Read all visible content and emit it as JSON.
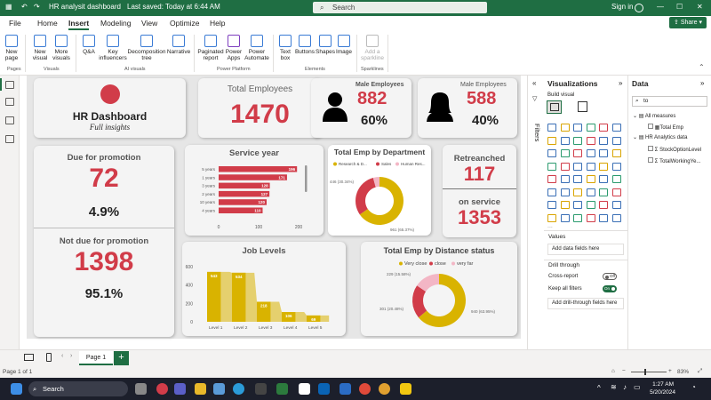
{
  "titlebar": {
    "doc_title": "HR analysit dashboard",
    "saved": "Last saved: Today at 6:44 AM",
    "search_placeholder": "Search",
    "signin": "Sign in"
  },
  "menu": {
    "items": [
      "File",
      "Home",
      "Insert",
      "Modeling",
      "View",
      "Optimize",
      "Help"
    ],
    "active": "Insert",
    "share": "Share"
  },
  "ribbon": {
    "buttons": [
      {
        "label": "New page",
        "group": "Pages"
      },
      {
        "label": "New visual",
        "group": "Visuals"
      },
      {
        "label": "More visuals",
        "group": "Visuals"
      },
      {
        "label": "Q&A",
        "group": "AI visuals"
      },
      {
        "label": "Key influencers",
        "group": "AI visuals"
      },
      {
        "label": "Decomposition tree",
        "group": "AI visuals"
      },
      {
        "label": "Narrative",
        "group": "AI visuals"
      },
      {
        "label": "Paginated report",
        "group": "Power Platform"
      },
      {
        "label": "Power Apps",
        "group": "Power Platform"
      },
      {
        "label": "Power Automate",
        "group": "Power Platform"
      },
      {
        "label": "Text box",
        "group": "Elements"
      },
      {
        "label": "Buttons",
        "group": "Elements"
      },
      {
        "label": "Shapes",
        "group": "Elements"
      },
      {
        "label": "Image",
        "group": "Elements"
      },
      {
        "label": "Add a sparkline",
        "group": "Sparklines"
      }
    ],
    "groups": [
      "Pages",
      "Visuals",
      "AI visuals",
      "Power Platform",
      "Elements",
      "Sparklines"
    ]
  },
  "dashboard": {
    "title": "HR Dashboard",
    "subtitle": "Full insights",
    "total_employees_label": "Total Employees",
    "total_employees": "1470",
    "male_label": "Male Employees",
    "male_count": "882",
    "male_pct": "60%",
    "female_label": "Male Employees",
    "female_count": "588",
    "female_pct": "40%",
    "due_label": "Due for promotion",
    "due_count": "72",
    "due_pct": "4.9%",
    "notdue_label": "Not due for promotion",
    "notdue_count": "1398",
    "notdue_pct": "95.1%",
    "retrenched_label": "Retreanched",
    "retrenched_count": "117",
    "onservice_label": "on service",
    "onservice_count": "1353"
  },
  "chart_data": [
    {
      "type": "bar",
      "title": "Service year",
      "orientation": "horizontal",
      "categories": [
        "5 years",
        "1 years",
        "3 years",
        "2 years",
        "10 years",
        "4 years"
      ],
      "values": [
        196,
        171,
        128,
        127,
        120,
        110
      ],
      "xlim": [
        0,
        200
      ],
      "xticks": [
        "0",
        "100",
        "200"
      ]
    },
    {
      "type": "pie",
      "title": "Total Emp by Department",
      "legend": [
        "Research & D...",
        "Sales",
        "Human Res..."
      ],
      "slices": [
        {
          "name": "Research & D...",
          "value": 961,
          "label": "961 (65.37%)",
          "color": "#d9b300"
        },
        {
          "name": "Sales",
          "value": 446,
          "label": "446 (30.34%)",
          "color": "#d13c49"
        },
        {
          "name": "Human Res...",
          "value": 63,
          "label": "",
          "color": "#f3b6c5"
        }
      ]
    },
    {
      "type": "bar",
      "title": "Job Levels",
      "categories": [
        "Level 1",
        "Level 2",
        "Level 3",
        "Level 4",
        "Level 5"
      ],
      "values": [
        543,
        534,
        218,
        106,
        69
      ],
      "ylim": [
        0,
        600
      ],
      "yticks": [
        "0",
        "200",
        "400",
        "600"
      ]
    },
    {
      "type": "pie",
      "title": "Total Emp by Distance status",
      "legend": [
        "Very close",
        "close",
        "very far"
      ],
      "slices": [
        {
          "name": "Very close",
          "value": 940,
          "label": "940 (63.95%)",
          "color": "#d9b300"
        },
        {
          "name": "close",
          "value": 301,
          "label": "301 (20.48%)",
          "color": "#d13c49"
        },
        {
          "name": "very far",
          "value": 229,
          "label": "229 (15.58%)",
          "color": "#f3b6c5"
        }
      ]
    }
  ],
  "filters_label": "Filters",
  "viz_pane": {
    "title": "Visualizations",
    "build_visual": "Build visual",
    "values_label": "Values",
    "add_fields": "Add data fields here",
    "drill_through": "Drill through",
    "cross_report": "Cross-report",
    "cross_state": "Off",
    "keep_filters": "Keep all filters",
    "keep_state": "On",
    "add_drill": "Add drill-through fields here"
  },
  "data_pane": {
    "title": "Data",
    "search_value": "to",
    "tree": [
      {
        "label": "All measures",
        "children": [
          "Total Emp"
        ]
      },
      {
        "label": "HR Analytics data",
        "children": [
          "StockOptionLevel",
          "TotalWorkingYe..."
        ]
      }
    ]
  },
  "pages": {
    "tab": "Page 1",
    "status": "Page 1 of 1",
    "zoom": "83%"
  },
  "taskbar": {
    "search": "Search",
    "time": "1:27 AM",
    "date": "5/20/2024"
  },
  "colors": {
    "red": "#d13c49",
    "gold": "#d9b300",
    "pink": "#f3b6c5",
    "green": "#1f6e43"
  }
}
